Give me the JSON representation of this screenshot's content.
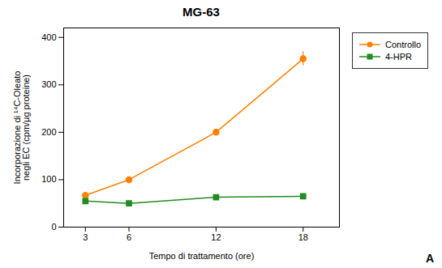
{
  "chart_data": {
    "type": "line",
    "title": "MG-63",
    "xlabel": "Tempo di trattamento (ore)",
    "ylabel": "Incorporazione di ¹⁴C-Oleato\nnegli EC (cpm/μg proteine)",
    "x": [
      3,
      6,
      12,
      18
    ],
    "series": [
      {
        "name": "Controllo",
        "color": "#FF8000",
        "marker": "circle",
        "values": [
          67,
          100,
          200,
          355
        ],
        "errors": [
          4,
          4,
          7,
          15
        ]
      },
      {
        "name": "4-HPR",
        "color": "#228B22",
        "marker": "square",
        "values": [
          55,
          50,
          63,
          65
        ],
        "errors": [
          3,
          3,
          4,
          3
        ]
      }
    ],
    "xlim": [
      1.5,
      20.5
    ],
    "xticks": [
      3,
      6,
      12,
      18
    ],
    "ylim": [
      0,
      420
    ],
    "yticks": [
      0,
      100,
      200,
      300,
      400
    ],
    "grid": false,
    "legend": "right",
    "annotations": [
      "A"
    ]
  }
}
